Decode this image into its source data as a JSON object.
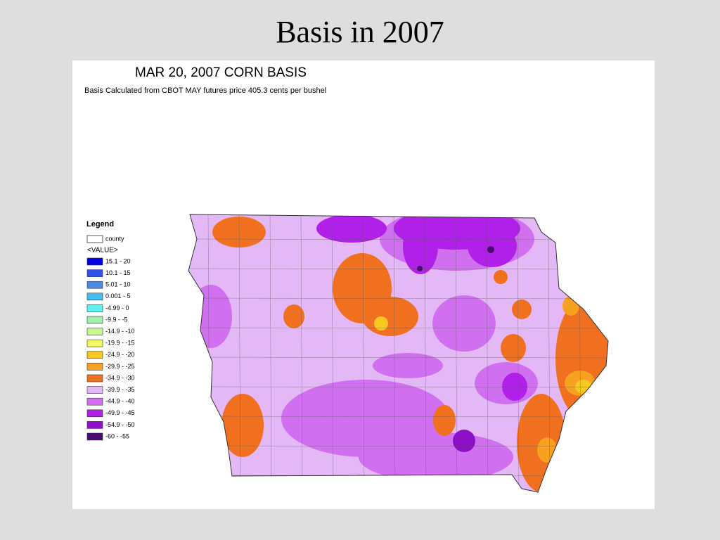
{
  "slide_title": "Basis in 2007",
  "map": {
    "title": "MAR 20, 2007 CORN BASIS",
    "subtitle": "Basis Calculated from CBOT MAY futures price 405.3 cents per bushel",
    "legend": {
      "title": "Legend",
      "county": "county",
      "value_header": "<VALUE>",
      "items": [
        {
          "label": "15.1 - 20",
          "color": "#0000e0"
        },
        {
          "label": "10.1 - 15",
          "color": "#3050e8"
        },
        {
          "label": "5.01 - 10",
          "color": "#4a8ae8"
        },
        {
          "label": "0.001 - 5",
          "color": "#40c0f0"
        },
        {
          "label": "-4.99 - 0",
          "color": "#60f0f0"
        },
        {
          "label": "-9.9 - -5",
          "color": "#a0f0b0"
        },
        {
          "label": "-14.9 - -10",
          "color": "#c8f890"
        },
        {
          "label": "-19.9 - -15",
          "color": "#f0f860"
        },
        {
          "label": "-24.9 - -20",
          "color": "#f8c820"
        },
        {
          "label": "-29.9 - -25",
          "color": "#f8a020"
        },
        {
          "label": "-34.9 - -30",
          "color": "#f07020"
        },
        {
          "label": "-39.9 - -35",
          "color": "#e4b8f6"
        },
        {
          "label": "-44.9 - -40",
          "color": "#d070f0"
        },
        {
          "label": "-49.9 - -45",
          "color": "#b020e8"
        },
        {
          "label": "-54.9 - -50",
          "color": "#8c10c8"
        },
        {
          "label": "-60 - -55",
          "color": "#4c0a70"
        }
      ]
    }
  }
}
